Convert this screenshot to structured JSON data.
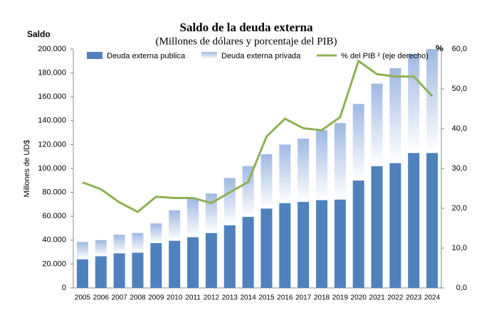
{
  "chart_data": {
    "type": "bar-line",
    "title": "Saldo de la deuda externa",
    "subtitle": "(Millones de dólares y porcentaje del PIB)",
    "y_axis_title": "Saldo",
    "y2_axis_title": "%",
    "y_label": "Millones de UD$",
    "categories": [
      "2005",
      "2006",
      "2007",
      "2008",
      "2009",
      "2010",
      "2011",
      "2012",
      "2013",
      "2014",
      "2015",
      "2016",
      "2017",
      "2018",
      "2019",
      "2020",
      "2021",
      "2022",
      "2023",
      "2024"
    ],
    "series": [
      {
        "name": "Deuda externa publica",
        "type": "bar",
        "color": "#4f81bd",
        "values": [
          24000,
          26500,
          29000,
          29500,
          37500,
          39500,
          42500,
          46000,
          52500,
          59500,
          66500,
          71000,
          72000,
          73500,
          74000,
          90000,
          102000,
          104500,
          113000,
          113000
        ]
      },
      {
        "name": "Deuda externa privada",
        "type": "bar",
        "color": "#9fb9e3",
        "values": [
          14500,
          13500,
          15500,
          16500,
          16500,
          25500,
          32500,
          33000,
          39500,
          42500,
          45500,
          49000,
          53000,
          58500,
          64000,
          64000,
          69000,
          79500,
          83000,
          87000
        ]
      },
      {
        "name": "% del PIB ² (eje derecho)",
        "type": "line",
        "axis": "y2",
        "color": "#8db152",
        "values": [
          26.5,
          24.8,
          21.5,
          19.1,
          22.9,
          22.6,
          22.6,
          21.3,
          24.0,
          26.6,
          38.0,
          42.5,
          40.1,
          39.6,
          42.9,
          57.0,
          53.7,
          53.1,
          53.1,
          48.2
        ]
      }
    ],
    "ylim": [
      0,
      200000
    ],
    "yticks": [
      0,
      {
        "value": 20000,
        "label": "20.000"
      },
      {
        "value": 40000,
        "label": "40.000"
      },
      {
        "value": 60000,
        "label": "60.000"
      },
      {
        "value": 80000,
        "label": "80.000"
      },
      {
        "value": 100000,
        "label": "100.000"
      },
      {
        "value": 120000,
        "label": "120.000"
      },
      {
        "value": 140000,
        "label": "140.000"
      },
      {
        "value": 160000,
        "label": "160.000"
      },
      {
        "value": 180000,
        "label": "180.000"
      },
      {
        "value": 200000,
        "label": "200.000"
      }
    ],
    "y2lim": [
      0,
      60
    ],
    "y2ticks": [
      {
        "value": 0,
        "label": "0,0"
      },
      {
        "value": 10,
        "label": "10,0"
      },
      {
        "value": 20,
        "label": "20,0"
      },
      {
        "value": 30,
        "label": "30,0"
      },
      {
        "value": 40,
        "label": "40,0"
      },
      {
        "value": 50,
        "label": "50,0"
      },
      {
        "value": 60,
        "label": "60,0"
      }
    ]
  }
}
